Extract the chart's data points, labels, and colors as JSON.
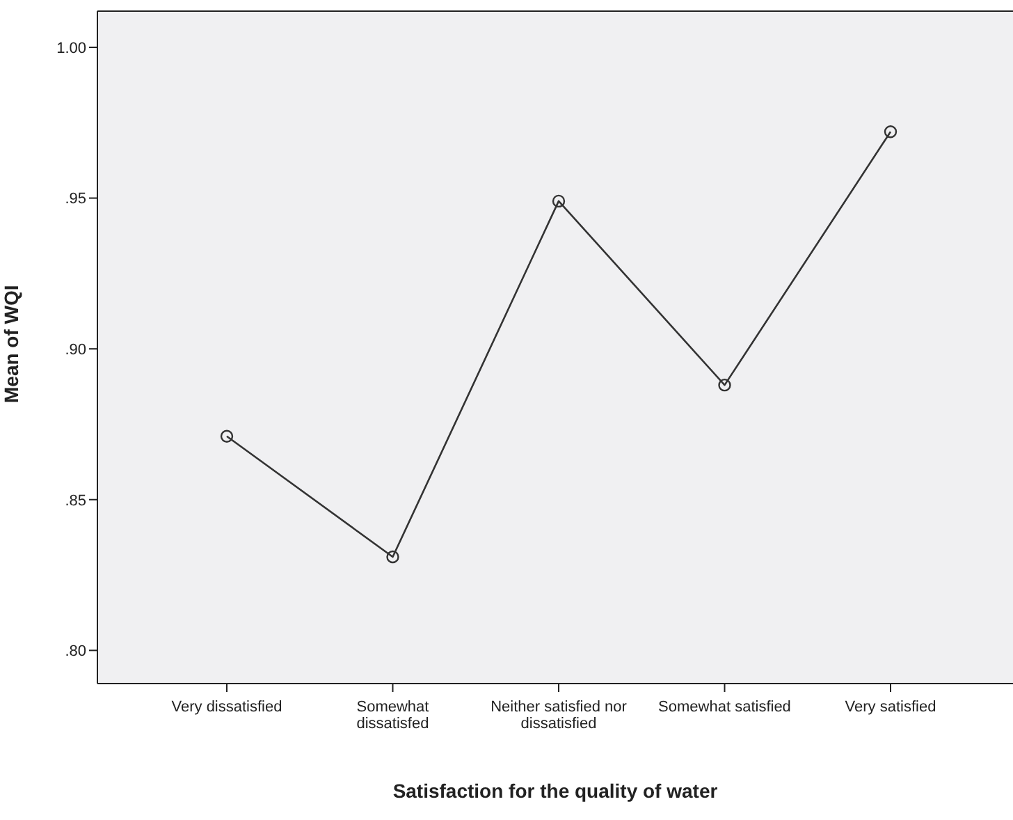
{
  "chart_data": {
    "type": "line",
    "xlabel": "Satisfaction for the quality of water",
    "ylabel": "Mean of WQI",
    "categories": [
      "Very dissatisfied",
      "Somewhat\ndissatisfed",
      "Neither satisfied nor\ndissatisfied",
      "Somewhat satisfied",
      "Very satisfied"
    ],
    "series": [
      {
        "color": "#333333",
        "values": [
          0.871,
          0.831,
          0.949,
          0.888,
          0.972
        ]
      }
    ],
    "ylim": [
      0.789,
      1.012
    ],
    "yticks": [
      {
        "value": 0.8,
        "label": ".80"
      },
      {
        "value": 0.85,
        "label": ".85"
      },
      {
        "value": 0.9,
        "label": ".90"
      },
      {
        "value": 0.95,
        "label": ".95"
      },
      {
        "value": 1.0,
        "label": "1.00"
      }
    ],
    "marker": "circle",
    "grid": false,
    "legend": false
  }
}
